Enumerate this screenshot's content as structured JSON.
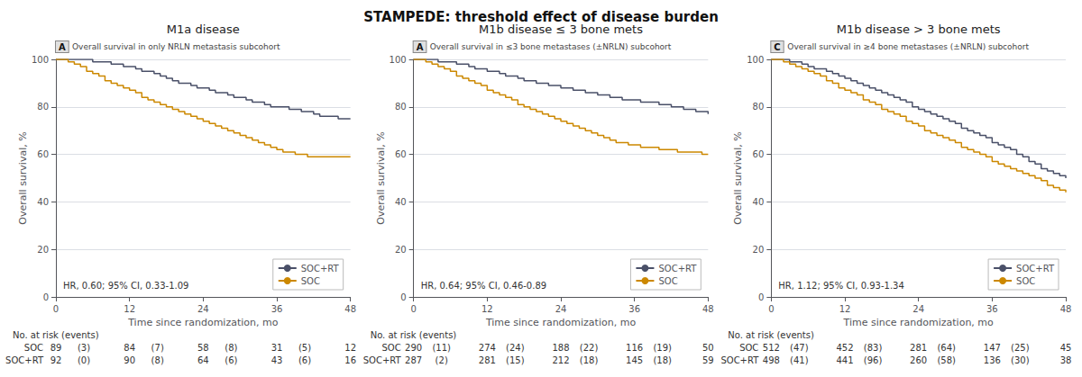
{
  "title": "STAMPEDE: threshold effect of disease burden",
  "chart_data": [
    {
      "type": "step",
      "title": "M1a disease",
      "panel_label": "A",
      "subtitle": "Overall survival in only NRLN metastasis subcohort",
      "annotation": "HR, 0.60; 95% CI, 0.33-1.09",
      "xlabel": "Time since randomization, mo",
      "ylabel": "Overall survival, %",
      "x": [
        0,
        1,
        2,
        3,
        4,
        5,
        6,
        7,
        8,
        9,
        10,
        11,
        12,
        13,
        14,
        15,
        16,
        17,
        18,
        19,
        20,
        21,
        22,
        23,
        24,
        25,
        26,
        27,
        28,
        29,
        30,
        31,
        32,
        33,
        34,
        35,
        36,
        37,
        38,
        39,
        40,
        41,
        42,
        43,
        44,
        45,
        46,
        47,
        48
      ],
      "series": [
        {
          "name": "SOC+RT",
          "color": "#4a5068",
          "values": [
            100,
            100,
            100,
            100,
            100,
            100,
            99,
            99,
            99,
            98,
            98,
            97,
            97,
            96,
            95,
            95,
            94,
            93,
            92,
            91,
            90,
            90,
            89,
            88,
            88,
            87,
            86,
            86,
            85,
            84,
            84,
            83,
            82,
            82,
            81,
            80,
            80,
            80,
            79,
            79,
            78,
            78,
            77,
            76,
            76,
            76,
            75,
            75,
            75
          ]
        },
        {
          "name": "SOC",
          "color": "#cc8800",
          "values": [
            100,
            100,
            99,
            98,
            97,
            95,
            94,
            93,
            91,
            90,
            89,
            88,
            87,
            86,
            84,
            83,
            82,
            81,
            80,
            79,
            78,
            77,
            76,
            75,
            74,
            73,
            72,
            71,
            70,
            69,
            68,
            67,
            66,
            65,
            64,
            63,
            62,
            61,
            61,
            60,
            60,
            59,
            59,
            59,
            59,
            59,
            59,
            59,
            59
          ]
        }
      ],
      "xlim": [
        0,
        48
      ],
      "xticks": [
        0,
        12,
        24,
        36,
        48
      ],
      "ylim": [
        0,
        100
      ],
      "yticks": [
        0,
        20,
        40,
        60,
        80,
        100
      ],
      "grid": true,
      "legend": "lower right",
      "risk_table": {
        "title": "No. at risk (events)",
        "rows": [
          {
            "name": "SOC",
            "at_risk": [
              89,
              84,
              58,
              31,
              12
            ],
            "events": [
              {
                "value": 3,
                "label": "(3)"
              },
              {
                "value": 7,
                "label": "(7)"
              },
              {
                "value": 8,
                "label": "(8)"
              },
              {
                "value": 5,
                "label": "(5)"
              }
            ]
          },
          {
            "name": "SOC+RT",
            "at_risk": [
              92,
              90,
              64,
              43,
              16
            ],
            "events": [
              {
                "value": 0,
                "label": "(0)"
              },
              {
                "value": 8,
                "label": "(8)"
              },
              {
                "value": 6,
                "label": "(6)"
              },
              {
                "value": 6,
                "label": "(6)"
              }
            ]
          }
        ]
      }
    },
    {
      "type": "step",
      "title": "M1b disease ≤ 3 bone mets",
      "panel_label": "A",
      "subtitle": "Overall survival in ≤3 bone metastases (±NRLN) subcohort",
      "annotation": "HR, 0.64; 95% CI, 0.46-0.89",
      "xlabel": "Time since randomization, mo",
      "ylabel": "Overall survival, %",
      "x": [
        0,
        1,
        2,
        3,
        4,
        5,
        6,
        7,
        8,
        9,
        10,
        11,
        12,
        13,
        14,
        15,
        16,
        17,
        18,
        19,
        20,
        21,
        22,
        23,
        24,
        25,
        26,
        27,
        28,
        29,
        30,
        31,
        32,
        33,
        34,
        35,
        36,
        37,
        38,
        39,
        40,
        41,
        42,
        43,
        44,
        45,
        46,
        47,
        48
      ],
      "series": [
        {
          "name": "SOC+RT",
          "color": "#4a5068",
          "values": [
            100,
            100,
            100,
            100,
            99,
            99,
            99,
            98,
            98,
            97,
            96,
            96,
            95,
            95,
            94,
            93,
            93,
            92,
            91,
            91,
            90,
            90,
            89,
            89,
            88,
            88,
            87,
            87,
            86,
            86,
            85,
            85,
            84,
            84,
            83,
            83,
            83,
            82,
            82,
            82,
            81,
            81,
            80,
            80,
            79,
            79,
            78,
            78,
            77
          ]
        },
        {
          "name": "SOC",
          "color": "#cc8800",
          "values": [
            100,
            100,
            99,
            98,
            97,
            96,
            95,
            93,
            92,
            91,
            90,
            89,
            87,
            86,
            85,
            84,
            83,
            81,
            80,
            79,
            78,
            77,
            76,
            75,
            74,
            73,
            72,
            71,
            70,
            69,
            68,
            67,
            66,
            65,
            65,
            64,
            64,
            63,
            63,
            63,
            62,
            62,
            62,
            61,
            61,
            61,
            61,
            60,
            60
          ]
        }
      ],
      "xlim": [
        0,
        48
      ],
      "xticks": [
        0,
        12,
        24,
        36,
        48
      ],
      "ylim": [
        0,
        100
      ],
      "yticks": [
        0,
        20,
        40,
        60,
        80,
        100
      ],
      "grid": true,
      "legend": "lower right",
      "risk_table": {
        "title": "No. at risk (events)",
        "rows": [
          {
            "name": "SOC",
            "at_risk": [
              290,
              274,
              188,
              116,
              50
            ],
            "events": [
              {
                "value": 11,
                "label": "(11)"
              },
              {
                "value": 24,
                "label": "(24)"
              },
              {
                "value": 22,
                "label": "(22)"
              },
              {
                "value": 19,
                "label": "(19)"
              }
            ]
          },
          {
            "name": "SOC+RT",
            "at_risk": [
              287,
              281,
              212,
              145,
              59
            ],
            "events": [
              {
                "value": 2,
                "label": "(2)"
              },
              {
                "value": 15,
                "label": "(15)"
              },
              {
                "value": 18,
                "label": "(18)"
              },
              {
                "value": 18,
                "label": "(18)"
              }
            ]
          }
        ]
      }
    },
    {
      "type": "step",
      "title": "M1b disease > 3 bone mets",
      "panel_label": "C",
      "subtitle": "Overall survival in ≥4 bone metastases (±NRLN) subcohort",
      "annotation": "HR, 1.12; 95% CI, 0.93-1.34",
      "xlabel": "Time since randomization, mo",
      "ylabel": "Overall survival, %",
      "x": [
        0,
        1,
        2,
        3,
        4,
        5,
        6,
        7,
        8,
        9,
        10,
        11,
        12,
        13,
        14,
        15,
        16,
        17,
        18,
        19,
        20,
        21,
        22,
        23,
        24,
        25,
        26,
        27,
        28,
        29,
        30,
        31,
        32,
        33,
        34,
        35,
        36,
        37,
        38,
        39,
        40,
        41,
        42,
        43,
        44,
        45,
        46,
        47,
        48
      ],
      "series": [
        {
          "name": "SOC+RT",
          "color": "#4a5068",
          "values": [
            100,
            100,
            100,
            99,
            99,
            98,
            97,
            96,
            96,
            95,
            94,
            93,
            92,
            91,
            90,
            89,
            88,
            87,
            86,
            85,
            84,
            83,
            82,
            80,
            79,
            78,
            77,
            76,
            75,
            74,
            73,
            71,
            70,
            69,
            68,
            67,
            65,
            64,
            63,
            62,
            60,
            59,
            57,
            56,
            54,
            53,
            52,
            51,
            50
          ]
        },
        {
          "name": "SOC",
          "color": "#cc8800",
          "values": [
            100,
            100,
            99,
            98,
            97,
            96,
            95,
            94,
            93,
            91,
            90,
            88,
            87,
            86,
            85,
            83,
            82,
            81,
            79,
            78,
            77,
            76,
            74,
            73,
            72,
            70,
            69,
            68,
            67,
            66,
            65,
            63,
            62,
            61,
            60,
            59,
            57,
            56,
            55,
            54,
            53,
            52,
            51,
            50,
            49,
            47,
            46,
            45,
            44
          ]
        }
      ],
      "xlim": [
        0,
        48
      ],
      "xticks": [
        0,
        12,
        24,
        36,
        48
      ],
      "ylim": [
        0,
        100
      ],
      "yticks": [
        0,
        20,
        40,
        60,
        80,
        100
      ],
      "grid": true,
      "legend": "lower right",
      "risk_table": {
        "title": "No. at risk (events)",
        "rows": [
          {
            "name": "SOC",
            "at_risk": [
              512,
              452,
              281,
              147,
              45
            ],
            "events": [
              {
                "value": 47,
                "label": "(47)"
              },
              {
                "value": 83,
                "label": "(83)"
              },
              {
                "value": 64,
                "label": "(64)"
              },
              {
                "value": 25,
                "label": "(25)"
              }
            ]
          },
          {
            "name": "SOC+RT",
            "at_risk": [
              498,
              441,
              260,
              136,
              38
            ],
            "events": [
              {
                "value": 41,
                "label": "(41)"
              },
              {
                "value": 96,
                "label": "(96)"
              },
              {
                "value": 58,
                "label": "(58)"
              },
              {
                "value": 30,
                "label": "(30)"
              }
            ]
          }
        ]
      }
    }
  ]
}
